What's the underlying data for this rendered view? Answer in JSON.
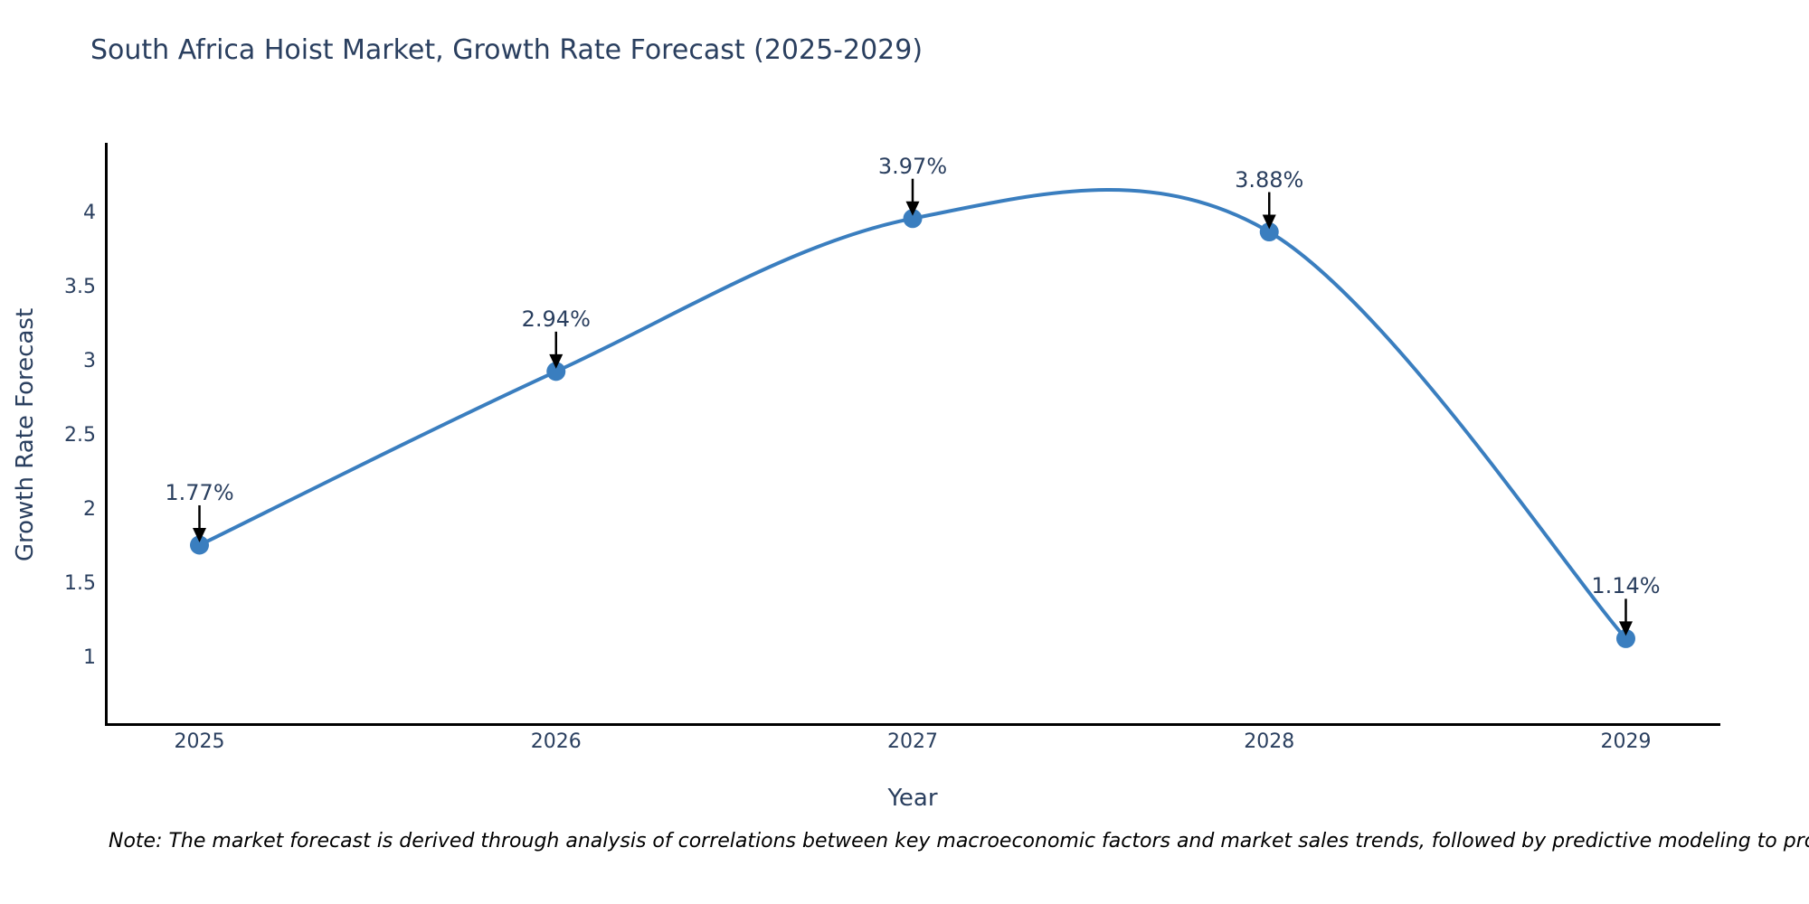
{
  "title": "South Africa Hoist Market, Growth Rate Forecast (2025-2029)",
  "footnote": "Note: The market forecast is derived through analysis of correlations between key macroeconomic factors and market sales trends, followed by predictive modeling to project future sales.",
  "chart_data": {
    "type": "line",
    "line_shape": "spline",
    "title": "South Africa Hoist Market, Growth Rate Forecast (2025-2029)",
    "xlabel": "Year",
    "ylabel": "Growth Rate Forecast",
    "x": [
      2025,
      2026,
      2027,
      2028,
      2029
    ],
    "y": [
      1.77,
      2.94,
      3.97,
      3.88,
      1.14
    ],
    "point_labels": [
      "1.77%",
      "2.94%",
      "3.97%",
      "3.88%",
      "1.14%"
    ],
    "x_ticks": [
      2025,
      2026,
      2027,
      2028,
      2029
    ],
    "y_ticks": [
      1,
      1.5,
      2,
      2.5,
      3,
      3.5,
      4
    ],
    "xlim": [
      2024.74,
      2029.26
    ],
    "ylim": [
      0.57,
      4.48
    ],
    "grid": false,
    "legend": false,
    "annotations_have_arrows": true,
    "colors": {
      "line": "#3a7ebf",
      "marker": "#3a7ebf",
      "label_text": "#2a3f5f",
      "axis_line": "#000000",
      "arrow": "#000000",
      "background": "#ffffff"
    }
  }
}
